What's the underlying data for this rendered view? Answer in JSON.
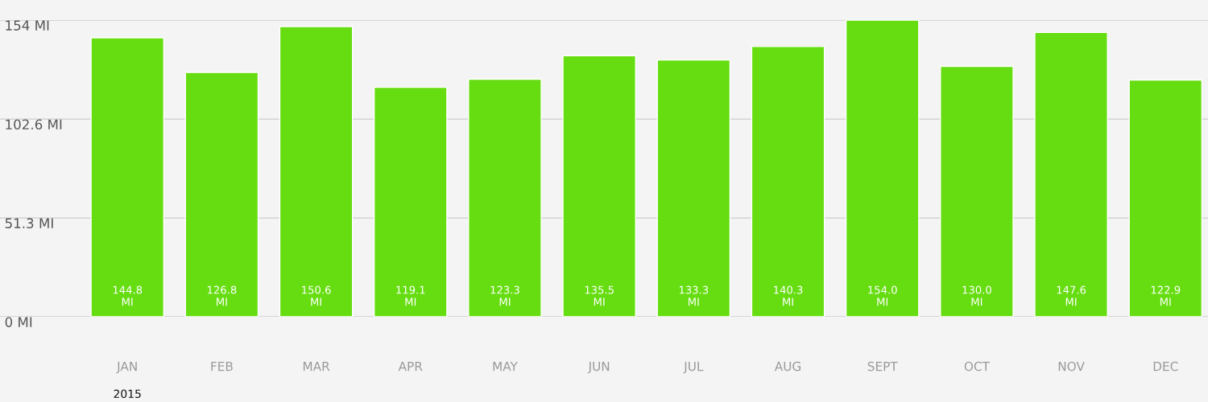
{
  "chart_data": {
    "type": "bar",
    "categories": [
      "JAN",
      "FEB",
      "MAR",
      "APR",
      "MAY",
      "JUN",
      "JUL",
      "AUG",
      "SEPT",
      "OCT",
      "NOV",
      "DEC"
    ],
    "values": [
      144.8,
      126.8,
      150.6,
      119.1,
      123.3,
      135.5,
      133.3,
      140.3,
      154.0,
      130.0,
      147.6,
      122.9
    ],
    "value_labels": [
      "144.8\nMI",
      "126.8\nMI",
      "150.6\nMI",
      "119.1\nMI",
      "123.3\nMI",
      "135.5\nMI",
      "133.3\nMI",
      "140.3\nMI",
      "154.0\nMI",
      "130.0\nMI",
      "147.6\nMI",
      "122.9\nMI"
    ],
    "color": "#66dd11",
    "ylim": [
      0,
      154
    ],
    "yticks": [
      {
        "value": 0,
        "label": "0 MI"
      },
      {
        "value": 51.3,
        "label": "51.3 MI"
      },
      {
        "value": 102.6,
        "label": "102.6 MI"
      },
      {
        "value": 154,
        "label": "154 MI"
      }
    ],
    "grid": "y",
    "annotations": [
      "2015"
    ]
  }
}
